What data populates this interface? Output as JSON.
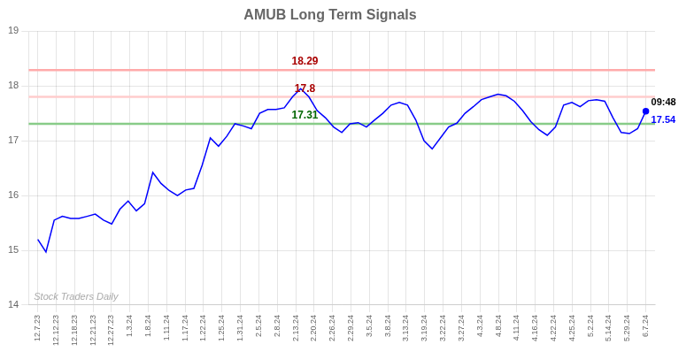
{
  "chart_data": {
    "type": "line",
    "title": "AMUB Long Term Signals",
    "x": [
      0,
      0.445946,
      0.891892,
      1.337838,
      1.783784,
      2.22973,
      2.675676,
      3.121622,
      3.567568,
      4.013514,
      4.459459,
      4.905405,
      5.351351,
      5.797297,
      6.243243,
      6.689189,
      7.135135,
      7.581081,
      8.027027,
      8.472973,
      8.918919,
      9.364865,
      9.810811,
      10.256757,
      10.702703,
      11.148649,
      11.594595,
      12.040541,
      12.486486,
      12.932432,
      13.378378,
      13.824324,
      14.27027,
      14.716216,
      15.162162,
      15.608108,
      16.054054,
      16.5,
      16.945946,
      17.391892,
      17.837838,
      18.283784,
      18.72973,
      19.175676,
      19.621622,
      20.067568,
      20.513514,
      20.959459,
      21.405405,
      21.851351,
      22.297297,
      22.743243,
      23.189189,
      23.635135,
      24.081081,
      24.527027,
      24.972973,
      25.418919,
      25.864865,
      26.310811,
      26.756757,
      27.202703,
      27.648649,
      28.094595,
      28.540541,
      28.986486,
      29.432432,
      29.878378,
      30.324324,
      30.77027,
      31.216216,
      31.662162,
      32.108108,
      32.554054,
      33
    ],
    "values": [
      15.2,
      14.97,
      15.55,
      15.62,
      15.58,
      15.58,
      15.62,
      15.66,
      15.55,
      15.48,
      15.75,
      15.9,
      15.72,
      15.85,
      16.42,
      16.22,
      16.09,
      16.0,
      16.1,
      16.13,
      16.55,
      17.05,
      16.9,
      17.08,
      17.31,
      17.27,
      17.22,
      17.5,
      17.57,
      17.57,
      17.6,
      17.8,
      17.95,
      17.8,
      17.55,
      17.42,
      17.25,
      17.15,
      17.31,
      17.33,
      17.25,
      17.38,
      17.5,
      17.65,
      17.7,
      17.65,
      17.38,
      17.0,
      16.85,
      17.05,
      17.25,
      17.32,
      17.5,
      17.62,
      17.75,
      17.8,
      17.85,
      17.82,
      17.72,
      17.55,
      17.35,
      17.2,
      17.1,
      17.25,
      17.65,
      17.7,
      17.62,
      17.73,
      17.75,
      17.72,
      17.42,
      17.15,
      17.13,
      17.22,
      17.54
    ],
    "color": "blue",
    "xlim": [
      -0.5,
      33.5
    ],
    "xticks": [
      {
        "value": 0,
        "label": "12.7.23"
      },
      {
        "value": 1,
        "label": "12.12.23"
      },
      {
        "value": 2,
        "label": "12.18.23"
      },
      {
        "value": 3,
        "label": "12.21.23"
      },
      {
        "value": 4,
        "label": "12.27.23"
      },
      {
        "value": 5,
        "label": "1.3.24"
      },
      {
        "value": 6,
        "label": "1.8.24"
      },
      {
        "value": 7,
        "label": "1.11.24"
      },
      {
        "value": 8,
        "label": "1.17.24"
      },
      {
        "value": 9,
        "label": "1.22.24"
      },
      {
        "value": 10,
        "label": "1.25.24"
      },
      {
        "value": 11,
        "label": "1.31.24"
      },
      {
        "value": 12,
        "label": "2.5.24"
      },
      {
        "value": 13,
        "label": "2.8.24"
      },
      {
        "value": 14,
        "label": "2.13.24"
      },
      {
        "value": 15,
        "label": "2.20.24"
      },
      {
        "value": 16,
        "label": "2.26.24"
      },
      {
        "value": 17,
        "label": "2.29.24"
      },
      {
        "value": 18,
        "label": "3.5.24"
      },
      {
        "value": 19,
        "label": "3.8.24"
      },
      {
        "value": 20,
        "label": "3.13.24"
      },
      {
        "value": 21,
        "label": "3.19.24"
      },
      {
        "value": 22,
        "label": "3.22.24"
      },
      {
        "value": 23,
        "label": "3.27.24"
      },
      {
        "value": 24,
        "label": "4.3.24"
      },
      {
        "value": 25,
        "label": "4.8.24"
      },
      {
        "value": 26,
        "label": "4.11.24"
      },
      {
        "value": 27,
        "label": "4.16.24"
      },
      {
        "value": 28,
        "label": "4.22.24"
      },
      {
        "value": 29,
        "label": "4.25.24"
      },
      {
        "value": 30,
        "label": "5.2.24"
      },
      {
        "value": 31,
        "label": "5.14.24"
      },
      {
        "value": 32,
        "label": "5.29.24"
      },
      {
        "value": 33,
        "label": "6.7.24"
      }
    ],
    "ylim": [
      14,
      19
    ],
    "yticks": [
      14,
      15,
      16,
      17,
      18,
      19
    ],
    "grid": true,
    "levels": [
      {
        "value": 18.29,
        "label": "18.29",
        "color": "#ffaaaa",
        "label_color": "#aa0000"
      },
      {
        "value": 17.8,
        "label": "17.8",
        "color": "#ffcccc",
        "label_color": "#aa0000"
      },
      {
        "value": 17.31,
        "label": "17.31",
        "color": "#88cc88",
        "label_color": "#006600"
      }
    ],
    "annotations": [
      {
        "text": "09:48",
        "x": 33,
        "y": 17.54,
        "color": "black"
      },
      {
        "text": "17.54",
        "x": 33,
        "y": 17.54,
        "color": "blue"
      }
    ],
    "watermark": {
      "text": "Stock Traders Daily",
      "color": "#aaaaaa"
    }
  }
}
